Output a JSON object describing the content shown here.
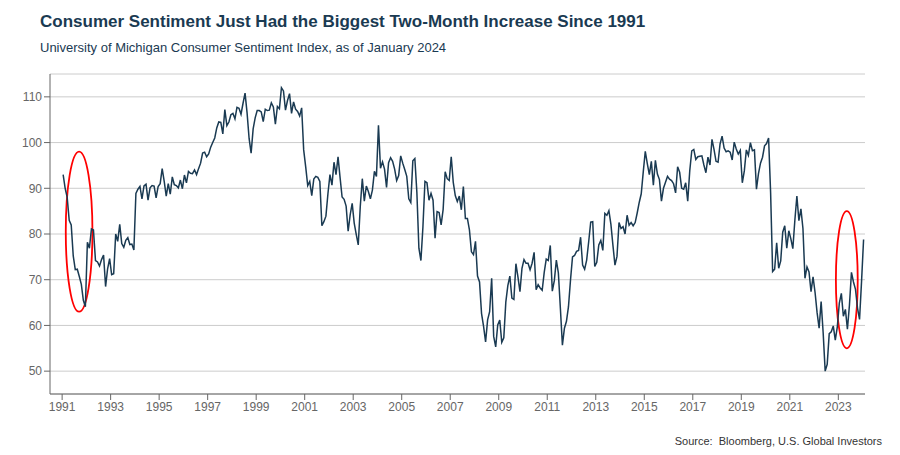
{
  "chart_data": {
    "type": "line",
    "title": "Consumer Sentiment Just Had the Biggest Two-Month Increase Since 1991",
    "subtitle": "University of Michigan Consumer Sentiment Index, as of January 2024",
    "source": "Source:  Bloomberg, U.S. Global Investors",
    "color": "#1a3a52",
    "xlim": [
      1990.5,
      2024.1
    ],
    "ylim": [
      45,
      115
    ],
    "xticks": [
      1991,
      1993,
      1995,
      1997,
      1999,
      2001,
      2003,
      2005,
      2007,
      2009,
      2011,
      2013,
      2015,
      2017,
      2019,
      2021,
      2023
    ],
    "yticks": [
      50,
      60,
      70,
      80,
      90,
      100,
      110
    ],
    "grid": "y",
    "ellipses": [
      {
        "cx": 1991.7,
        "cy": 80.5,
        "width": 1.1,
        "height": 35,
        "color": "red"
      },
      {
        "cx": 2023.35,
        "cy": 70,
        "width": 0.9,
        "height": 30,
        "color": "red"
      }
    ],
    "x": [
      1991.041667,
      1991.125,
      1991.208333,
      1991.291667,
      1991.375,
      1991.458333,
      1991.541667,
      1991.625,
      1991.708333,
      1991.791667,
      1991.875,
      1991.958333,
      1992.041667,
      1992.125,
      1992.208333,
      1992.291667,
      1992.375,
      1992.458333,
      1992.541667,
      1992.625,
      1992.708333,
      1992.791667,
      1992.875,
      1992.958333,
      1993.041667,
      1993.125,
      1993.208333,
      1993.291667,
      1993.375,
      1993.458333,
      1993.541667,
      1993.625,
      1993.708333,
      1993.791667,
      1993.875,
      1993.958333,
      1994.041667,
      1994.125,
      1994.208333,
      1994.291667,
      1994.375,
      1994.458333,
      1994.541667,
      1994.625,
      1994.708333,
      1994.791667,
      1994.875,
      1994.958333,
      1995.041667,
      1995.125,
      1995.208333,
      1995.291667,
      1995.375,
      1995.458333,
      1995.541667,
      1995.625,
      1995.708333,
      1995.791667,
      1995.875,
      1995.958333,
      1996.041667,
      1996.125,
      1996.208333,
      1996.291667,
      1996.375,
      1996.458333,
      1996.541667,
      1996.625,
      1996.708333,
      1996.791667,
      1996.875,
      1996.958333,
      1997.041667,
      1997.125,
      1997.208333,
      1997.291667,
      1997.375,
      1997.458333,
      1997.541667,
      1997.625,
      1997.708333,
      1997.791667,
      1997.875,
      1997.958333,
      1998.041667,
      1998.125,
      1998.208333,
      1998.291667,
      1998.375,
      1998.458333,
      1998.541667,
      1998.625,
      1998.708333,
      1998.791667,
      1998.875,
      1998.958333,
      1999.041667,
      1999.125,
      1999.208333,
      1999.291667,
      1999.375,
      1999.458333,
      1999.541667,
      1999.625,
      1999.708333,
      1999.791667,
      1999.875,
      1999.958333,
      2000.041667,
      2000.125,
      2000.208333,
      2000.291667,
      2000.375,
      2000.458333,
      2000.541667,
      2000.625,
      2000.708333,
      2000.791667,
      2000.875,
      2000.958333,
      2001.041667,
      2001.125,
      2001.208333,
      2001.291667,
      2001.375,
      2001.458333,
      2001.541667,
      2001.625,
      2001.708333,
      2001.791667,
      2001.875,
      2001.958333,
      2002.041667,
      2002.125,
      2002.208333,
      2002.291667,
      2002.375,
      2002.458333,
      2002.541667,
      2002.625,
      2002.708333,
      2002.791667,
      2002.875,
      2002.958333,
      2003.041667,
      2003.125,
      2003.208333,
      2003.291667,
      2003.375,
      2003.458333,
      2003.541667,
      2003.625,
      2003.708333,
      2003.791667,
      2003.875,
      2003.958333,
      2004.041667,
      2004.125,
      2004.208333,
      2004.291667,
      2004.375,
      2004.458333,
      2004.541667,
      2004.625,
      2004.708333,
      2004.791667,
      2004.875,
      2004.958333,
      2005.041667,
      2005.125,
      2005.208333,
      2005.291667,
      2005.375,
      2005.458333,
      2005.541667,
      2005.625,
      2005.708333,
      2005.791667,
      2005.875,
      2005.958333,
      2006.041667,
      2006.125,
      2006.208333,
      2006.291667,
      2006.375,
      2006.458333,
      2006.541667,
      2006.625,
      2006.708333,
      2006.791667,
      2006.875,
      2006.958333,
      2007.041667,
      2007.125,
      2007.208333,
      2007.291667,
      2007.375,
      2007.458333,
      2007.541667,
      2007.625,
      2007.708333,
      2007.791667,
      2007.875,
      2007.958333,
      2008.041667,
      2008.125,
      2008.208333,
      2008.291667,
      2008.375,
      2008.458333,
      2008.541667,
      2008.625,
      2008.708333,
      2008.791667,
      2008.875,
      2008.958333,
      2009.041667,
      2009.125,
      2009.208333,
      2009.291667,
      2009.375,
      2009.458333,
      2009.541667,
      2009.625,
      2009.708333,
      2009.791667,
      2009.875,
      2009.958333,
      2010.041667,
      2010.125,
      2010.208333,
      2010.291667,
      2010.375,
      2010.458333,
      2010.541667,
      2010.625,
      2010.708333,
      2010.791667,
      2010.875,
      2010.958333,
      2011.041667,
      2011.125,
      2011.208333,
      2011.291667,
      2011.375,
      2011.458333,
      2011.541667,
      2011.625,
      2011.708333,
      2011.791667,
      2011.875,
      2011.958333,
      2012.041667,
      2012.125,
      2012.208333,
      2012.291667,
      2012.375,
      2012.458333,
      2012.541667,
      2012.625,
      2012.708333,
      2012.791667,
      2012.875,
      2012.958333,
      2013.041667,
      2013.125,
      2013.208333,
      2013.291667,
      2013.375,
      2013.458333,
      2013.541667,
      2013.625,
      2013.708333,
      2013.791667,
      2013.875,
      2013.958333,
      2014.041667,
      2014.125,
      2014.208333,
      2014.291667,
      2014.375,
      2014.458333,
      2014.541667,
      2014.625,
      2014.708333,
      2014.791667,
      2014.875,
      2014.958333,
      2015.041667,
      2015.125,
      2015.208333,
      2015.291667,
      2015.375,
      2015.458333,
      2015.541667,
      2015.625,
      2015.708333,
      2015.791667,
      2015.875,
      2015.958333,
      2016.041667,
      2016.125,
      2016.208333,
      2016.291667,
      2016.375,
      2016.458333,
      2016.541667,
      2016.625,
      2016.708333,
      2016.791667,
      2016.875,
      2016.958333,
      2017.041667,
      2017.125,
      2017.208333,
      2017.291667,
      2017.375,
      2017.458333,
      2017.541667,
      2017.625,
      2017.708333,
      2017.791667,
      2017.875,
      2017.958333,
      2018.041667,
      2018.125,
      2018.208333,
      2018.291667,
      2018.375,
      2018.458333,
      2018.541667,
      2018.625,
      2018.708333,
      2018.791667,
      2018.875,
      2018.958333,
      2019.041667,
      2019.125,
      2019.208333,
      2019.291667,
      2019.375,
      2019.458333,
      2019.541667,
      2019.625,
      2019.708333,
      2019.791667,
      2019.875,
      2019.958333,
      2020.041667,
      2020.125,
      2020.208333,
      2020.291667,
      2020.375,
      2020.458333,
      2020.541667,
      2020.625,
      2020.708333,
      2020.791667,
      2020.875,
      2020.958333,
      2021.041667,
      2021.125,
      2021.208333,
      2021.291667,
      2021.375,
      2021.458333,
      2021.541667,
      2021.625,
      2021.708333,
      2021.791667,
      2021.875,
      2021.958333,
      2022.041667,
      2022.125,
      2022.208333,
      2022.291667,
      2022.375,
      2022.458333,
      2022.541667,
      2022.625,
      2022.708333,
      2022.791667,
      2022.875,
      2022.958333,
      2023.041667,
      2023.125,
      2023.208333,
      2023.291667,
      2023.375,
      2023.458333,
      2023.541667,
      2023.625,
      2023.708333,
      2023.791667,
      2023.875,
      2023.958333,
      2024.041667
    ],
    "values": [
      93.0,
      90.0,
      88.0,
      83.0,
      82.0,
      75.2,
      72.2,
      72.3,
      70.7,
      69.0,
      65.5,
      64.1,
      78.2,
      76.9,
      81.1,
      80.9,
      74.2,
      73.9,
      73.0,
      74.4,
      75.4,
      68.5,
      72.4,
      74.6,
      71.1,
      71.3,
      80.0,
      78.4,
      82.1,
      77.9,
      77.1,
      78.6,
      79.2,
      77.7,
      77.8,
      76.5,
      88.9,
      89.8,
      90.4,
      87.7,
      90.5,
      90.9,
      87.4,
      90.1,
      90.6,
      90.5,
      87.9,
      90.4,
      91.0,
      94.3,
      91.5,
      88.3,
      91.0,
      88.7,
      92.5,
      90.8,
      90.6,
      90.1,
      91.8,
      89.9,
      92.9,
      91.2,
      93.7,
      93.3,
      93.2,
      94.0,
      93.0,
      94.3,
      95.5,
      97.7,
      97.9,
      96.9,
      97.5,
      99.0,
      100.0,
      101.0,
      103.2,
      104.5,
      104.4,
      101.9,
      107.2,
      103.7,
      104.5,
      106.1,
      106.4,
      105.2,
      107.7,
      107.5,
      106.2,
      108.6,
      110.8,
      106.5,
      100.9,
      97.7,
      103.0,
      105.4,
      107.0,
      107.0,
      106.7,
      104.6,
      107.3,
      107.0,
      107.1,
      108.7,
      107.8,
      104.0,
      107.9,
      107.4,
      112.0,
      111.3,
      107.1,
      109.2,
      110.7,
      106.4,
      108.9,
      107.3,
      106.8,
      105.8,
      107.6,
      98.4,
      94.7,
      90.6,
      91.5,
      88.4,
      92.0,
      92.6,
      92.4,
      91.5,
      81.8,
      82.7,
      83.9,
      88.8,
      93.0,
      90.7,
      95.7,
      93.0,
      96.9,
      92.4,
      88.1,
      87.6,
      86.1,
      80.6,
      84.2,
      86.7,
      82.4,
      79.9,
      77.6,
      86.0,
      92.1,
      87.2,
      90.5,
      89.3,
      87.7,
      89.6,
      93.7,
      92.6,
      103.8,
      94.4,
      95.8,
      94.2,
      90.2,
      95.6,
      96.7,
      95.9,
      94.2,
      91.7,
      92.8,
      97.1,
      95.5,
      94.1,
      92.6,
      87.7,
      86.9,
      96.0,
      96.5,
      89.1,
      76.9,
      74.2,
      81.6,
      91.5,
      91.2,
      87.4,
      88.9,
      87.4,
      79.1,
      84.9,
      84.7,
      82.0,
      85.4,
      93.6,
      92.1,
      91.7,
      96.9,
      91.3,
      88.4,
      87.1,
      88.3,
      85.3,
      90.4,
      83.4,
      83.4,
      80.9,
      76.1,
      75.5,
      78.4,
      70.8,
      69.5,
      62.6,
      59.8,
      56.4,
      61.2,
      63.0,
      70.3,
      57.6,
      55.3,
      60.1,
      61.2,
      56.3,
      57.3,
      65.1,
      68.7,
      70.8,
      66.0,
      65.7,
      73.5,
      70.6,
      67.4,
      72.5,
      74.4,
      73.6,
      73.6,
      72.2,
      73.6,
      76.0,
      67.8,
      68.9,
      68.2,
      67.7,
      71.6,
      74.5,
      74.2,
      77.5,
      67.5,
      69.8,
      74.3,
      71.5,
      63.7,
      55.7,
      59.4,
      60.9,
      64.1,
      69.9,
      75.0,
      75.3,
      76.2,
      76.4,
      79.3,
      73.2,
      72.3,
      74.3,
      78.3,
      82.6,
      82.7,
      72.9,
      73.8,
      77.6,
      78.6,
      76.4,
      84.5,
      84.1,
      85.1,
      82.1,
      77.5,
      73.2,
      75.1,
      82.5,
      81.2,
      81.6,
      80.0,
      84.1,
      81.9,
      82.5,
      81.8,
      82.5,
      84.6,
      86.9,
      88.8,
      93.6,
      98.1,
      95.4,
      93.0,
      95.9,
      90.7,
      96.1,
      93.1,
      91.9,
      87.2,
      90.0,
      91.3,
      92.6,
      92.0,
      91.7,
      91.0,
      89.0,
      94.7,
      93.5,
      90.0,
      89.8,
      91.2,
      87.2,
      93.8,
      98.2,
      98.5,
      96.3,
      96.9,
      97.0,
      97.1,
      95.1,
      93.4,
      96.8,
      95.1,
      100.7,
      98.5,
      95.9,
      95.7,
      99.7,
      101.4,
      98.8,
      98.0,
      98.2,
      97.9,
      96.2,
      100.1,
      98.6,
      97.5,
      98.3,
      91.2,
      93.8,
      98.4,
      97.2,
      100.0,
      98.2,
      98.4,
      89.8,
      93.2,
      95.5,
      96.8,
      99.3,
      99.8,
      101.0,
      89.1,
      71.8,
      72.3,
      78.1,
      72.5,
      74.1,
      80.4,
      81.8,
      76.9,
      80.7,
      79.0,
      76.8,
      83.0,
      88.3,
      82.9,
      85.5,
      81.2,
      70.3,
      72.8,
      71.7,
      67.4,
      70.6,
      67.2,
      62.8,
      59.4,
      65.2,
      58.4,
      50.0,
      51.5,
      58.2,
      58.6,
      59.9,
      56.8,
      59.7,
      64.9,
      67.0,
      62.0,
      63.5,
      59.2,
      64.4,
      71.6,
      69.5,
      67.9,
      63.8,
      61.3,
      69.7,
      78.8
    ]
  }
}
